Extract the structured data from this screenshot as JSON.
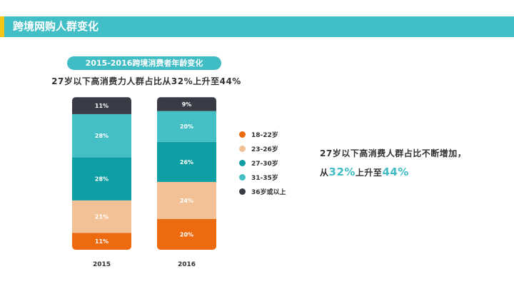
{
  "header": {
    "title": "跨境网购人群变化"
  },
  "pill": {
    "title": "2015-2016跨境消费者年龄变化"
  },
  "subtitle": "27岁以下高消费力人群占比从32%上升至44%",
  "note": {
    "line1": "27岁以下高消费人群占比不断增加，",
    "prefix": "从",
    "from_value": "32%",
    "middle": "上升至",
    "to_value": "44%"
  },
  "colors": {
    "header": "#41bec6",
    "accent": "#f5c518"
  },
  "chart_data": {
    "type": "bar",
    "stacked": true,
    "categories": [
      "2015",
      "2016"
    ],
    "ylim": [
      0,
      100
    ],
    "series": [
      {
        "name": "18-22岁",
        "color": "#ee6a10",
        "values": [
          11,
          20
        ],
        "labels": [
          "11%",
          "20%"
        ]
      },
      {
        "name": "23-26岁",
        "color": "#f2c196",
        "values": [
          21,
          24
        ],
        "labels": [
          "21%",
          "24%"
        ]
      },
      {
        "name": "27-30岁",
        "color": "#0e9fa4",
        "values": [
          28,
          26
        ],
        "labels": [
          "28%",
          "26%"
        ]
      },
      {
        "name": "31-35岁",
        "color": "#44bfc6",
        "values": [
          28,
          20
        ],
        "labels": [
          "28%",
          "20%"
        ]
      },
      {
        "name": "36岁或以上",
        "color": "#393c46",
        "values": [
          11,
          9
        ],
        "labels": [
          "11%",
          "9%"
        ]
      }
    ]
  }
}
